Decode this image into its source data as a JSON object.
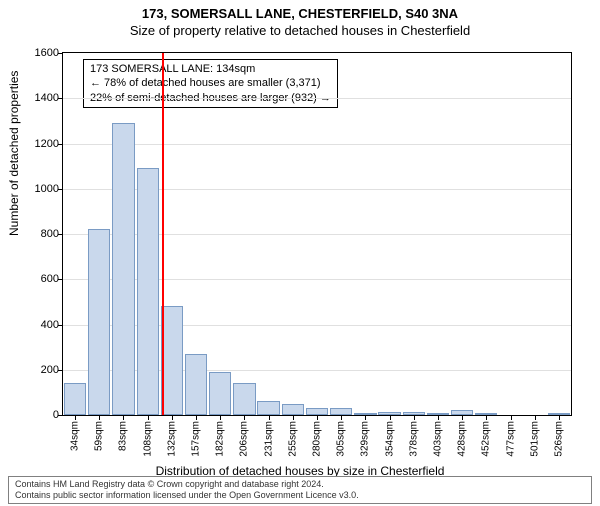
{
  "title": "173, SOMERSALL LANE, CHESTERFIELD, S40 3NA",
  "subtitle": "Size of property relative to detached houses in Chesterfield",
  "ylabel": "Number of detached properties",
  "xlabel": "Distribution of detached houses by size in Chesterfield",
  "chart": {
    "type": "histogram",
    "x_categories": [
      "34sqm",
      "59sqm",
      "83sqm",
      "108sqm",
      "132sqm",
      "157sqm",
      "182sqm",
      "206sqm",
      "231sqm",
      "255sqm",
      "280sqm",
      "305sqm",
      "329sqm",
      "354sqm",
      "378sqm",
      "403sqm",
      "428sqm",
      "452sqm",
      "477sqm",
      "501sqm",
      "526sqm"
    ],
    "values": [
      140,
      820,
      1290,
      1090,
      480,
      270,
      190,
      140,
      60,
      50,
      30,
      30,
      10,
      15,
      15,
      5,
      20,
      10,
      0,
      0,
      5
    ],
    "bar_fill": "#c9d8ec",
    "bar_border": "#7a9bc4",
    "ylim": [
      0,
      1600
    ],
    "ytick_step": 200,
    "grid_color": "#e0e0e0",
    "background_color": "#ffffff",
    "reference_line": {
      "index": 4,
      "color": "#ff0000"
    }
  },
  "annotation": {
    "line1": "173 SOMERSALL LANE: 134sqm",
    "line2": "← 78% of detached houses are smaller (3,371)",
    "line3": "22% of semi-detached houses are larger (932) →"
  },
  "footer": {
    "line1": "Contains HM Land Registry data © Crown copyright and database right 2024.",
    "line2": "Contains public sector information licensed under the Open Government Licence v3.0."
  }
}
